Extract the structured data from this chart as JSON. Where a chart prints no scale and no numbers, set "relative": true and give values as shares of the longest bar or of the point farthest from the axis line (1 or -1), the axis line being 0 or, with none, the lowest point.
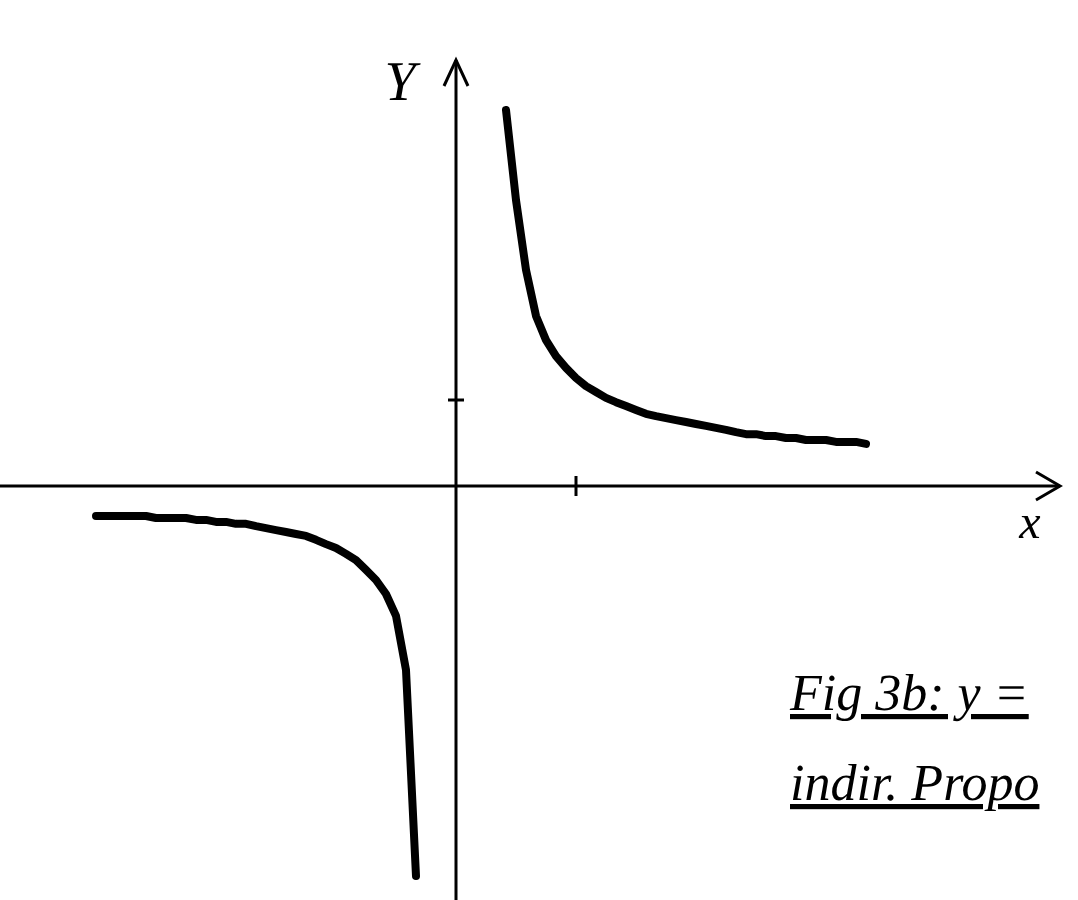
{
  "chart_data": {
    "type": "line",
    "relative": true,
    "xlabel": "x",
    "ylabel": "Y",
    "marker": "none",
    "line_style": "solid",
    "annotations": [
      "Fig 3b: y =",
      "indir. Propo"
    ],
    "categories": [
      null,
      null,
      null,
      null,
      null,
      null,
      null,
      null,
      null,
      null,
      null,
      null,
      null,
      null,
      null,
      null,
      null,
      null,
      null,
      null,
      null,
      null,
      null,
      null,
      null,
      null,
      null,
      null,
      null,
      null,
      null,
      null,
      null,
      null,
      null,
      null,
      null,
      null,
      null,
      null,
      null,
      null,
      null,
      null,
      null,
      null,
      null,
      null,
      null,
      null,
      null,
      null,
      null,
      null,
      null,
      null,
      null,
      null,
      null,
      null,
      null,
      null,
      null,
      null,
      null,
      null,
      null,
      null,
      null,
      null,
      null,
      null,
      null,
      null,
      null,
      null,
      null,
      null
    ],
    "series": [
      {
        "color": "#000000",
        "values": [
          null,
          null,
          null,
          null,
          null,
          null,
          null,
          null,
          null,
          null,
          null,
          null,
          null,
          null,
          null,
          null,
          null,
          null,
          null,
          null,
          null,
          null,
          null,
          null,
          null,
          null,
          null,
          null,
          null,
          null,
          null,
          null,
          null,
          null,
          null,
          null,
          null,
          null,
          null,
          null,
          null,
          0.964,
          0.733,
          0.554,
          0.436,
          0.374,
          0.333,
          0.303,
          0.277,
          0.256,
          0.241,
          0.226,
          0.215,
          0.205,
          0.195,
          0.185,
          0.179,
          0.174,
          0.169,
          0.164,
          0.159,
          0.154,
          0.149,
          0.144,
          0.138,
          0.133,
          0.133,
          0.128,
          0.128,
          0.123,
          0.123,
          0.118,
          0.118,
          0.118,
          0.113,
          0.113,
          0.113,
          0.108
        ]
      },
      {
        "color": "#000000",
        "values": [
          -0.077,
          -0.077,
          -0.077,
          -0.077,
          -0.077,
          -0.077,
          -0.082,
          -0.082,
          -0.082,
          -0.082,
          -0.087,
          -0.087,
          -0.092,
          -0.092,
          -0.097,
          -0.097,
          -0.103,
          -0.108,
          -0.113,
          -0.118,
          -0.123,
          -0.128,
          -0.138,
          -0.149,
          -0.159,
          -0.174,
          -0.19,
          -0.215,
          -0.241,
          -0.277,
          -0.333,
          -0.472,
          -1,
          null,
          null,
          null,
          null,
          null,
          null,
          null,
          null,
          null,
          null,
          null,
          null,
          null,
          null,
          null,
          null,
          null,
          null,
          null,
          null,
          null,
          null,
          null,
          null,
          null,
          null,
          null,
          null,
          null,
          null,
          null,
          null,
          null,
          null,
          null,
          null,
          null,
          null,
          null,
          null,
          null,
          null,
          null,
          null,
          null
        ]
      }
    ]
  }
}
